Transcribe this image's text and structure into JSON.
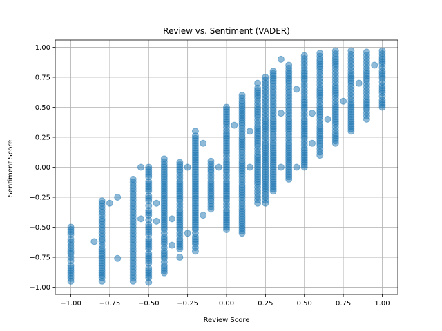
{
  "chart_data": {
    "type": "scatter",
    "title": "Review vs. Sentiment (VADER)",
    "xlabel": "Review Score",
    "ylabel": "Sentiment Score",
    "xlim": [
      -1.1,
      1.1
    ],
    "ylim": [
      -1.06,
      1.06
    ],
    "xticks": [
      -1.0,
      -0.75,
      -0.5,
      -0.25,
      0.0,
      0.25,
      0.5,
      0.75,
      1.0
    ],
    "xtick_labels": [
      "−1.00",
      "−0.75",
      "−0.50",
      "−0.25",
      "0.00",
      "0.25",
      "0.50",
      "0.75",
      "1.00"
    ],
    "yticks": [
      -1.0,
      -0.75,
      -0.5,
      -0.25,
      0.0,
      0.25,
      0.5,
      0.75,
      1.0
    ],
    "ytick_labels": [
      "−1.00",
      "−0.75",
      "−0.50",
      "−0.25",
      "0.00",
      "0.25",
      "0.50",
      "0.75",
      "1.00"
    ],
    "grid": true,
    "color": "#1f77b4",
    "alpha": 0.5,
    "columns": [
      {
        "x": -1.0,
        "y": [
          -0.95,
          -0.88,
          -0.82,
          -0.78,
          -0.75,
          -0.72,
          -0.7,
          -0.65,
          -0.6,
          -0.56,
          -0.52,
          -0.5
        ]
      },
      {
        "x": -0.8,
        "y": [
          -0.95,
          -0.92,
          -0.8,
          -0.78,
          -0.76,
          -0.72,
          -0.7,
          -0.68,
          -0.65,
          -0.62,
          -0.6,
          -0.55,
          -0.5,
          -0.45,
          -0.43,
          -0.4,
          -0.35,
          -0.3,
          -0.28
        ]
      },
      {
        "x": -0.6,
        "y": [
          -0.95,
          -0.9,
          -0.85,
          -0.8,
          -0.75,
          -0.7,
          -0.65,
          -0.6,
          -0.55,
          -0.5,
          -0.45,
          -0.4,
          -0.35,
          -0.3,
          -0.25,
          -0.2,
          -0.15,
          -0.1
        ]
      },
      {
        "x": -0.5,
        "y": [
          -0.96,
          -0.92,
          -0.88,
          -0.84,
          -0.8,
          -0.76,
          -0.72,
          -0.68,
          -0.64,
          -0.6,
          -0.56,
          -0.52,
          -0.48,
          -0.44,
          -0.4,
          -0.36,
          -0.32,
          -0.28,
          -0.24,
          -0.2,
          -0.16,
          -0.12,
          -0.08,
          -0.04,
          0.0
        ]
      },
      {
        "x": -0.4,
        "y": [
          -0.88,
          -0.82,
          -0.76,
          -0.7,
          -0.64,
          -0.58,
          -0.52,
          -0.46,
          -0.4,
          -0.34,
          -0.28,
          -0.22,
          -0.16,
          -0.1,
          -0.04,
          0.02,
          0.07
        ]
      },
      {
        "x": -0.3,
        "y": [
          -0.68,
          -0.6,
          -0.52,
          -0.44,
          -0.36,
          -0.28,
          -0.2,
          -0.12,
          -0.04,
          0.04
        ]
      },
      {
        "x": -0.2,
        "y": [
          -0.7,
          -0.64,
          -0.58,
          -0.52,
          -0.46,
          -0.4,
          -0.34,
          -0.28,
          -0.22,
          -0.16,
          -0.1,
          -0.04,
          0.02,
          0.08,
          0.14,
          0.2,
          0.26,
          0.3
        ]
      },
      {
        "x": -0.1,
        "y": [
          -0.35,
          -0.28,
          -0.2,
          -0.12,
          -0.04,
          0.0,
          0.05
        ]
      },
      {
        "x": 0.0,
        "y": [
          -0.52,
          -0.44,
          -0.36,
          -0.28,
          -0.2,
          -0.12,
          -0.04,
          0.04,
          0.12,
          0.2,
          0.28,
          0.36,
          0.44,
          0.5
        ]
      },
      {
        "x": 0.1,
        "y": [
          -0.55,
          -0.45,
          -0.35,
          -0.25,
          -0.15,
          -0.05,
          0.05,
          0.15,
          0.25,
          0.35,
          0.45,
          0.55,
          0.6
        ]
      },
      {
        "x": 0.2,
        "y": [
          -0.3,
          -0.22,
          -0.14,
          -0.06,
          0.02,
          0.1,
          0.18,
          0.26,
          0.34,
          0.42,
          0.5,
          0.58,
          0.66,
          0.7
        ]
      },
      {
        "x": 0.25,
        "y": [
          -0.3,
          -0.2,
          -0.1,
          0.0,
          0.1,
          0.2,
          0.3,
          0.4,
          0.5,
          0.6,
          0.7,
          0.75
        ]
      },
      {
        "x": 0.3,
        "y": [
          -0.2,
          -0.1,
          0.0,
          0.1,
          0.2,
          0.3,
          0.4,
          0.5,
          0.6,
          0.7,
          0.78,
          0.8
        ]
      },
      {
        "x": 0.4,
        "y": [
          -0.1,
          0.0,
          0.1,
          0.2,
          0.3,
          0.4,
          0.5,
          0.6,
          0.7,
          0.8,
          0.85
        ]
      },
      {
        "x": 0.5,
        "y": [
          0.0,
          0.08,
          0.16,
          0.24,
          0.32,
          0.4,
          0.48,
          0.56,
          0.64,
          0.72,
          0.8,
          0.88,
          0.93
        ]
      },
      {
        "x": 0.6,
        "y": [
          0.1,
          0.18,
          0.26,
          0.34,
          0.42,
          0.5,
          0.58,
          0.66,
          0.74,
          0.82,
          0.9,
          0.95
        ]
      },
      {
        "x": 0.7,
        "y": [
          0.2,
          0.28,
          0.36,
          0.44,
          0.52,
          0.6,
          0.68,
          0.76,
          0.84,
          0.92,
          0.97
        ]
      },
      {
        "x": 0.8,
        "y": [
          0.3,
          0.38,
          0.46,
          0.54,
          0.62,
          0.7,
          0.78,
          0.86,
          0.94,
          0.97
        ]
      },
      {
        "x": 0.9,
        "y": [
          0.4,
          0.48,
          0.56,
          0.64,
          0.72,
          0.8,
          0.88,
          0.96
        ]
      },
      {
        "x": 1.0,
        "y": [
          0.5,
          0.56,
          0.62,
          0.68,
          0.74,
          0.8,
          0.86,
          0.92,
          0.97
        ]
      }
    ],
    "scattered_points": [
      {
        "x": -0.85,
        "y": -0.62
      },
      {
        "x": -0.75,
        "y": -0.3
      },
      {
        "x": -0.7,
        "y": -0.25
      },
      {
        "x": -0.7,
        "y": -0.76
      },
      {
        "x": -0.55,
        "y": -0.43
      },
      {
        "x": -0.45,
        "y": -0.3
      },
      {
        "x": -0.45,
        "y": -0.45
      },
      {
        "x": -0.35,
        "y": -0.65
      },
      {
        "x": -0.35,
        "y": -0.43
      },
      {
        "x": -0.3,
        "y": -0.75
      },
      {
        "x": -0.25,
        "y": -0.55
      },
      {
        "x": -0.15,
        "y": -0.4
      },
      {
        "x": -0.15,
        "y": 0.2
      },
      {
        "x": -0.05,
        "y": 0.0
      },
      {
        "x": 0.05,
        "y": 0.35
      },
      {
        "x": 0.15,
        "y": 0.3
      },
      {
        "x": 0.35,
        "y": 0.45
      },
      {
        "x": 0.45,
        "y": 0.65
      },
      {
        "x": 0.55,
        "y": 0.2
      },
      {
        "x": 0.65,
        "y": 0.4
      },
      {
        "x": 0.75,
        "y": 0.55
      },
      {
        "x": 0.85,
        "y": 0.7
      },
      {
        "x": 0.95,
        "y": 0.85
      },
      {
        "x": -0.55,
        "y": 0.0
      },
      {
        "x": -0.25,
        "y": 0.0
      },
      {
        "x": 0.15,
        "y": 0.0
      },
      {
        "x": 0.35,
        "y": 0.0
      },
      {
        "x": 0.45,
        "y": 0.0
      },
      {
        "x": 0.55,
        "y": 0.45
      },
      {
        "x": 0.35,
        "y": 0.9
      }
    ]
  }
}
